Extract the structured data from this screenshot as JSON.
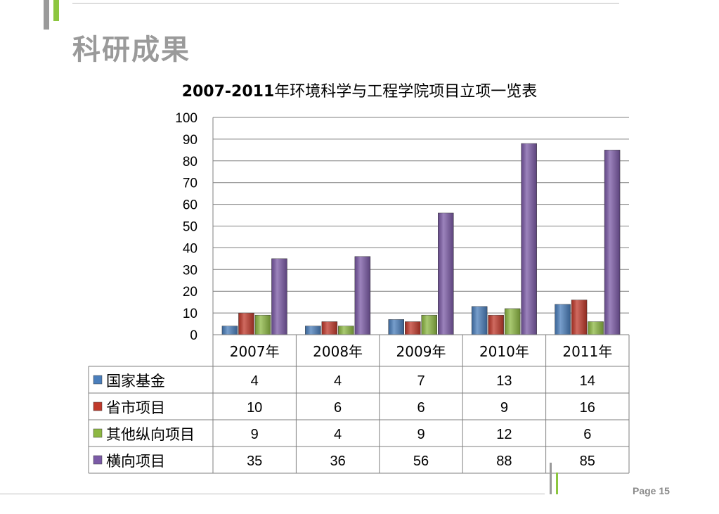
{
  "slide": {
    "title": "科研成果",
    "page_label": "Page 15"
  },
  "chart_data": {
    "type": "bar",
    "title_prefix": "2007-2011",
    "title_suffix": "年环境科学与工程学院项目立项一览表",
    "categories": [
      "2007年",
      "2008年",
      "2009年",
      "2010年",
      "2011年"
    ],
    "ylim": [
      0,
      100
    ],
    "yticks": [
      0,
      10,
      20,
      30,
      40,
      50,
      60,
      70,
      80,
      90,
      100
    ],
    "grid": true,
    "legend": "data-table",
    "series": [
      {
        "name": "国家基金",
        "values": [
          4,
          4,
          7,
          13,
          14
        ],
        "color": "#4a7ebb"
      },
      {
        "name": "省市项目",
        "values": [
          10,
          6,
          6,
          9,
          16
        ],
        "color": "#c0392b"
      },
      {
        "name": "其他纵向项目",
        "values": [
          9,
          4,
          9,
          12,
          6
        ],
        "color": "#8db843"
      },
      {
        "name": "横向项目",
        "values": [
          35,
          36,
          56,
          88,
          85
        ],
        "color": "#7b5aa6"
      }
    ]
  },
  "colors": {
    "accent_green": "#8cc63f",
    "accent_gray": "#9a9a9a"
  }
}
